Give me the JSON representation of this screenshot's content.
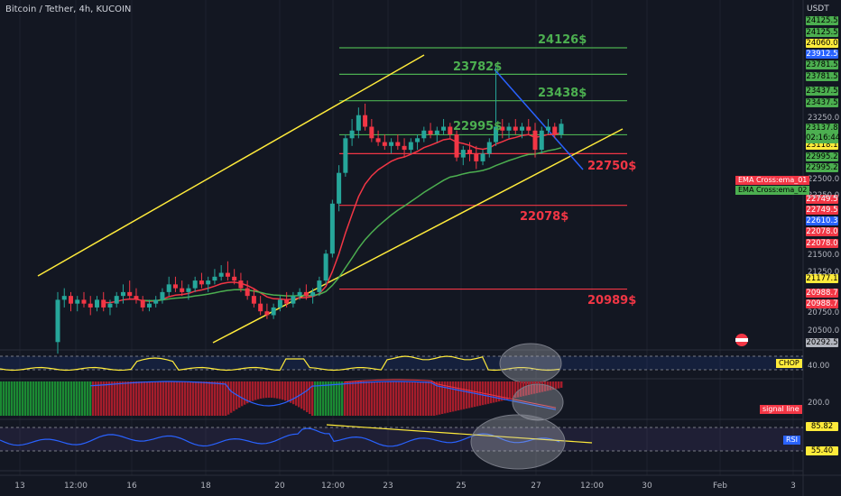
{
  "header": {
    "title": "Bitcoin / Tether, 4h, KUCOIN",
    "currency": "USDT"
  },
  "levels": {
    "green": [
      "24126$",
      "23782$",
      "23438$",
      "22995$"
    ],
    "red": [
      "22750$",
      "22078$",
      "20989$"
    ]
  },
  "price_labels": [
    {
      "text": "24125.5",
      "kind": "green"
    },
    {
      "text": "24125.5",
      "kind": "green"
    },
    {
      "text": "24060.0",
      "kind": "yellow"
    },
    {
      "text": "23912.5",
      "kind": "blue"
    },
    {
      "text": "23781.5",
      "kind": "green"
    },
    {
      "text": "23781.5",
      "kind": "green"
    },
    {
      "text": "23437.5",
      "kind": "green"
    },
    {
      "text": "23437.5",
      "kind": "green"
    },
    {
      "text": "23118.1",
      "kind": "yellow"
    },
    {
      "text": "22995.2",
      "kind": "green"
    },
    {
      "text": "22995.2",
      "kind": "green"
    },
    {
      "text": "22749.5",
      "kind": "red"
    },
    {
      "text": "22749.5",
      "kind": "red"
    },
    {
      "text": "22610.3",
      "kind": "blue"
    },
    {
      "text": "22078.0",
      "kind": "red"
    },
    {
      "text": "22078.0",
      "kind": "red"
    },
    {
      "text": "21177.1",
      "kind": "yellow"
    },
    {
      "text": "20988.7",
      "kind": "red"
    },
    {
      "text": "20988.7",
      "kind": "red"
    },
    {
      "text": "20292.5",
      "kind": "gray"
    }
  ],
  "current_price": {
    "price": "23137.8",
    "countdown": "02:16:44"
  },
  "y_ticks": [
    "23250.0",
    "22500.0",
    "22250.0",
    "21500.0",
    "21250.0",
    "20750.0",
    "20500.0"
  ],
  "legend_tags": {
    "ema1": "EMA Cross:ema_01",
    "ema2": "EMA Cross:ema_02"
  },
  "indicators": {
    "chop": {
      "name": "CHOP",
      "level": "40.00"
    },
    "signal": {
      "name": "signal line",
      "level": "200.0"
    },
    "rsi": {
      "name": "RSI",
      "upper": "85.82",
      "lower": "55.40"
    }
  },
  "x_ticks": [
    "13",
    "12:00",
    "16",
    "18",
    "20",
    "12:00",
    "23",
    "25",
    "27",
    "12:00",
    "30",
    "Feb",
    "3"
  ],
  "colors": {
    "up": "#26a69a",
    "down": "#f23645",
    "channel": "#ffeb3b",
    "ema1": "#f23645",
    "ema2": "#4caf50",
    "trend": "#2962ff"
  },
  "chart_data": {
    "type": "candlestick",
    "symbol": "Bitcoin / Tether, 4h, KUCOIN",
    "ylim": [
      20200,
      24300
    ],
    "candles": [
      [
        20300,
        20950,
        20150,
        20850
      ],
      [
        20850,
        21000,
        20750,
        20900
      ],
      [
        20900,
        20950,
        20700,
        20800
      ],
      [
        20800,
        20900,
        20700,
        20850
      ],
      [
        20850,
        20950,
        20750,
        20800
      ],
      [
        20800,
        20900,
        20650,
        20750
      ],
      [
        20750,
        20900,
        20700,
        20850
      ],
      [
        20850,
        20950,
        20700,
        20750
      ],
      [
        20750,
        20850,
        20650,
        20800
      ],
      [
        20800,
        20950,
        20750,
        20900
      ],
      [
        20900,
        21050,
        20800,
        20950
      ],
      [
        20950,
        21100,
        20850,
        20900
      ],
      [
        20900,
        21000,
        20800,
        20850
      ],
      [
        20850,
        20900,
        20700,
        20750
      ],
      [
        20750,
        20850,
        20700,
        20800
      ],
      [
        20800,
        20900,
        20750,
        20850
      ],
      [
        20850,
        21000,
        20800,
        20950
      ],
      [
        20950,
        21150,
        20900,
        21050
      ],
      [
        21050,
        21150,
        20950,
        21000
      ],
      [
        21000,
        21100,
        20900,
        20950
      ],
      [
        20950,
        21050,
        20850,
        21000
      ],
      [
        21000,
        21150,
        20950,
        21100
      ],
      [
        21100,
        21200,
        21000,
        21050
      ],
      [
        21050,
        21150,
        20950,
        21100
      ],
      [
        21100,
        21250,
        21050,
        21150
      ],
      [
        21150,
        21300,
        21100,
        21200
      ],
      [
        21200,
        21350,
        21100,
        21150
      ],
      [
        21150,
        21250,
        21050,
        21100
      ],
      [
        21100,
        21200,
        20950,
        21000
      ],
      [
        21000,
        21100,
        20850,
        20900
      ],
      [
        20900,
        21000,
        20750,
        20800
      ],
      [
        20800,
        20900,
        20650,
        20700
      ],
      [
        20700,
        20800,
        20600,
        20650
      ],
      [
        20650,
        20800,
        20600,
        20750
      ],
      [
        20750,
        20900,
        20700,
        20850
      ],
      [
        20850,
        20950,
        20750,
        20800
      ],
      [
        20800,
        20950,
        20750,
        20900
      ],
      [
        20900,
        21000,
        20850,
        20950
      ],
      [
        20950,
        21050,
        20850,
        20900
      ],
      [
        20900,
        21000,
        20800,
        20950
      ],
      [
        20950,
        21150,
        20900,
        21100
      ],
      [
        21100,
        21500,
        21050,
        21450
      ],
      [
        21450,
        22150,
        21400,
        22100
      ],
      [
        22100,
        22600,
        22000,
        22500
      ],
      [
        22500,
        23000,
        22450,
        22950
      ],
      [
        22950,
        23200,
        22850,
        23050
      ],
      [
        23050,
        23350,
        22950,
        23250
      ],
      [
        23250,
        23400,
        23050,
        23100
      ],
      [
        23100,
        23200,
        22900,
        22950
      ],
      [
        22950,
        23050,
        22850,
        22900
      ],
      [
        22900,
        23000,
        22800,
        22850
      ],
      [
        22850,
        22950,
        22750,
        22900
      ],
      [
        22900,
        23000,
        22800,
        22850
      ],
      [
        22850,
        22950,
        22700,
        22800
      ],
      [
        22800,
        22950,
        22750,
        22900
      ],
      [
        22900,
        23000,
        22800,
        22950
      ],
      [
        22950,
        23100,
        22900,
        23050
      ],
      [
        23050,
        23150,
        22950,
        23000
      ],
      [
        23000,
        23100,
        22900,
        23050
      ],
      [
        23050,
        23200,
        23000,
        23100
      ],
      [
        23100,
        23150,
        22950,
        23000
      ],
      [
        23000,
        23050,
        22650,
        22700
      ],
      [
        22700,
        22850,
        22600,
        22800
      ],
      [
        22800,
        22900,
        22650,
        22750
      ],
      [
        22750,
        22850,
        22550,
        22650
      ],
      [
        22650,
        22800,
        22600,
        22750
      ],
      [
        22750,
        22950,
        22700,
        22900
      ],
      [
        22900,
        23900,
        22850,
        23100
      ],
      [
        23100,
        23200,
        22950,
        23050
      ],
      [
        23050,
        23150,
        22950,
        23100
      ],
      [
        23100,
        23200,
        23000,
        23050
      ],
      [
        23050,
        23150,
        22950,
        23100
      ],
      [
        23100,
        23200,
        23000,
        23050
      ],
      [
        23050,
        23150,
        22700,
        22800
      ],
      [
        22800,
        23100,
        22750,
        23050
      ],
      [
        23050,
        23200,
        23000,
        23100
      ],
      [
        23100,
        23150,
        22950,
        23000
      ],
      [
        23000,
        23200,
        22950,
        23137.8
      ]
    ]
  }
}
